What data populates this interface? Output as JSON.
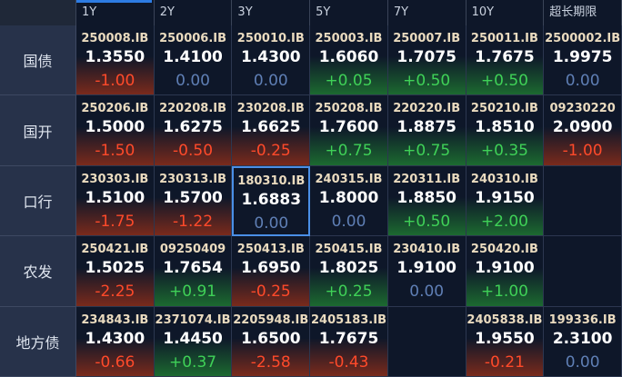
{
  "header": {
    "columns": [
      "1Y",
      "2Y",
      "3Y",
      "5Y",
      "7Y",
      "10Y",
      "超长期限"
    ]
  },
  "table": {
    "rows": [
      {
        "label": "国债",
        "cells": [
          {
            "code": "250008.IB",
            "yield": "1.3550",
            "change": "-1.00"
          },
          {
            "code": "250006.IB",
            "yield": "1.4100",
            "change": "0.00"
          },
          {
            "code": "250010.IB",
            "yield": "1.4300",
            "change": "0.00"
          },
          {
            "code": "250003.IB",
            "yield": "1.6060",
            "change": "+0.05"
          },
          {
            "code": "250007.IB",
            "yield": "1.7075",
            "change": "+0.50"
          },
          {
            "code": "250011.IB",
            "yield": "1.7675",
            "change": "+0.50"
          },
          {
            "code": "2500002.IB",
            "yield": "1.9975",
            "change": "0.00"
          }
        ]
      },
      {
        "label": "国开",
        "cells": [
          {
            "code": "250206.IB",
            "yield": "1.5000",
            "change": "-1.50"
          },
          {
            "code": "220208.IB",
            "yield": "1.6275",
            "change": "-0.50"
          },
          {
            "code": "230208.IB",
            "yield": "1.6625",
            "change": "-0.25"
          },
          {
            "code": "250208.IB",
            "yield": "1.7600",
            "change": "+0.75"
          },
          {
            "code": "220220.IB",
            "yield": "1.8875",
            "change": "+0.75"
          },
          {
            "code": "250210.IB",
            "yield": "1.8510",
            "change": "+0.35"
          },
          {
            "code": "09230220",
            "yield": "2.0900",
            "change": "-1.00"
          }
        ]
      },
      {
        "label": "口行",
        "cells": [
          {
            "code": "230303.IB",
            "yield": "1.5100",
            "change": "-1.75"
          },
          {
            "code": "230313.IB",
            "yield": "1.5700",
            "change": "-1.22"
          },
          {
            "code": "180310.IB",
            "yield": "1.6883",
            "change": "0.00",
            "selected": true
          },
          {
            "code": "240315.IB",
            "yield": "1.8000",
            "change": "0.00"
          },
          {
            "code": "220311.IB",
            "yield": "1.8850",
            "change": "+0.50"
          },
          {
            "code": "240310.IB",
            "yield": "1.9150",
            "change": "+2.00"
          },
          null
        ]
      },
      {
        "label": "农发",
        "cells": [
          {
            "code": "250421.IB",
            "yield": "1.5025",
            "change": "-2.25"
          },
          {
            "code": "09250409",
            "yield": "1.7654",
            "change": "+0.91"
          },
          {
            "code": "250413.IB",
            "yield": "1.6950",
            "change": "-0.25"
          },
          {
            "code": "250415.IB",
            "yield": "1.8025",
            "change": "+0.25"
          },
          {
            "code": "230410.IB",
            "yield": "1.9100",
            "change": "0.00"
          },
          {
            "code": "250420.IB",
            "yield": "1.9100",
            "change": "+1.00"
          },
          null
        ]
      },
      {
        "label": "地方债",
        "cells": [
          {
            "code": "234843.IB",
            "yield": "1.4300",
            "change": "-0.66"
          },
          {
            "code": "2371074.IB",
            "yield": "1.4450",
            "change": "+0.37"
          },
          {
            "code": "2205948.IB",
            "yield": "1.6500",
            "change": "-2.58"
          },
          {
            "code": "2405183.IB",
            "yield": "1.7675",
            "change": "-0.43"
          },
          null,
          {
            "code": "2405838.IB",
            "yield": "1.9550",
            "change": "-0.21"
          },
          {
            "code": "199336.IB",
            "yield": "2.3100",
            "change": "0.00"
          }
        ]
      }
    ]
  }
}
